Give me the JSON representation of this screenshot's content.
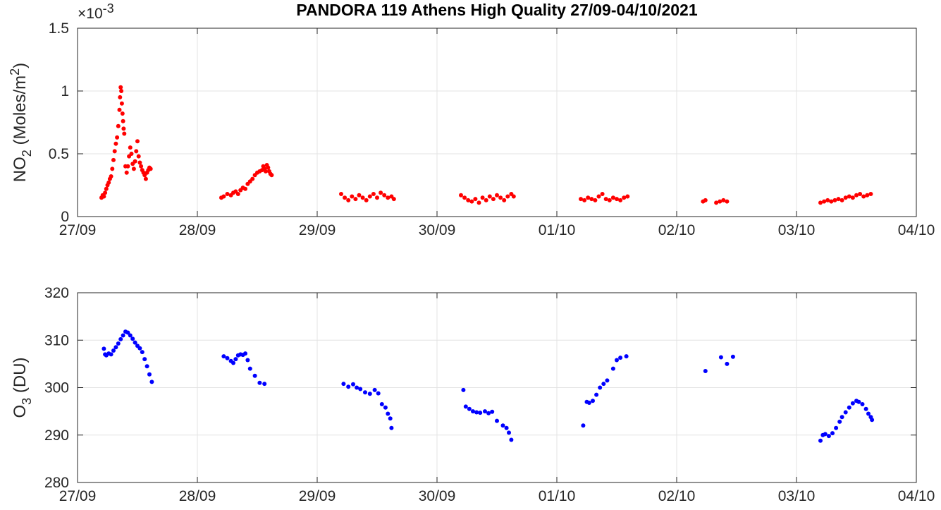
{
  "title": "PANDORA 119 Athens High Quality 27/09-04/10/2021",
  "colors": {
    "no2": "#ff0000",
    "o3": "#0000ff",
    "grid": "#e3e3e3",
    "axis": "#262626"
  },
  "chart_data": [
    {
      "type": "scatter",
      "name": "no2",
      "ylabel": "NO2 (Moles/m2)",
      "ylabel_main": "NO",
      "ylabel_sub": "2",
      "ylabel_rest": " (Moles/m",
      "ylabel_sup": "2",
      "ylabel_end": ")",
      "y_multiplier": "×10",
      "y_multiplier_exp": "-3",
      "xlim": [
        "2021-09-27",
        "2021-10-04"
      ],
      "ylim": [
        0,
        1.5
      ],
      "xticks": [
        "27/09",
        "28/09",
        "29/09",
        "30/09",
        "01/10",
        "02/10",
        "03/10",
        "04/10"
      ],
      "yticks": [
        "0",
        "0.5",
        "1",
        "1.5"
      ],
      "ytick_values": [
        0,
        0.5,
        1,
        1.5
      ],
      "grid": true,
      "units_note": "y values in units of 1e-3 mol/m2; x as fractional day of 27/09",
      "x_days_from": "2021-09-27",
      "points": [
        [
          0.2,
          0.15
        ],
        [
          0.21,
          0.17
        ],
        [
          0.22,
          0.16
        ],
        [
          0.23,
          0.19
        ],
        [
          0.24,
          0.22
        ],
        [
          0.25,
          0.25
        ],
        [
          0.26,
          0.27
        ],
        [
          0.27,
          0.3
        ],
        [
          0.28,
          0.32
        ],
        [
          0.29,
          0.38
        ],
        [
          0.3,
          0.45
        ],
        [
          0.31,
          0.52
        ],
        [
          0.32,
          0.58
        ],
        [
          0.33,
          0.63
        ],
        [
          0.34,
          0.72
        ],
        [
          0.35,
          0.85
        ],
        [
          0.355,
          0.95
        ],
        [
          0.36,
          1.03
        ],
        [
          0.365,
          1.0
        ],
        [
          0.37,
          0.9
        ],
        [
          0.375,
          0.82
        ],
        [
          0.38,
          0.76
        ],
        [
          0.385,
          0.7
        ],
        [
          0.39,
          0.66
        ],
        [
          0.4,
          0.4
        ],
        [
          0.41,
          0.35
        ],
        [
          0.42,
          0.4
        ],
        [
          0.43,
          0.48
        ],
        [
          0.44,
          0.55
        ],
        [
          0.45,
          0.5
        ],
        [
          0.46,
          0.42
        ],
        [
          0.47,
          0.38
        ],
        [
          0.48,
          0.44
        ],
        [
          0.49,
          0.52
        ],
        [
          0.5,
          0.6
        ],
        [
          0.51,
          0.48
        ],
        [
          0.52,
          0.43
        ],
        [
          0.53,
          0.4
        ],
        [
          0.54,
          0.37
        ],
        [
          0.55,
          0.35
        ],
        [
          0.56,
          0.33
        ],
        [
          0.57,
          0.3
        ],
        [
          0.58,
          0.35
        ],
        [
          0.59,
          0.37
        ],
        [
          0.6,
          0.39
        ],
        [
          0.61,
          0.38
        ],
        [
          1.2,
          0.15
        ],
        [
          1.22,
          0.16
        ],
        [
          1.25,
          0.18
        ],
        [
          1.28,
          0.17
        ],
        [
          1.3,
          0.19
        ],
        [
          1.32,
          0.2
        ],
        [
          1.34,
          0.18
        ],
        [
          1.36,
          0.21
        ],
        [
          1.38,
          0.23
        ],
        [
          1.4,
          0.22
        ],
        [
          1.42,
          0.26
        ],
        [
          1.44,
          0.28
        ],
        [
          1.46,
          0.3
        ],
        [
          1.48,
          0.33
        ],
        [
          1.5,
          0.35
        ],
        [
          1.52,
          0.36
        ],
        [
          1.54,
          0.37
        ],
        [
          1.55,
          0.4
        ],
        [
          1.56,
          0.38
        ],
        [
          1.57,
          0.36
        ],
        [
          1.58,
          0.41
        ],
        [
          1.59,
          0.39
        ],
        [
          1.6,
          0.36
        ],
        [
          1.61,
          0.34
        ],
        [
          1.62,
          0.33
        ],
        [
          2.2,
          0.18
        ],
        [
          2.23,
          0.15
        ],
        [
          2.26,
          0.13
        ],
        [
          2.29,
          0.16
        ],
        [
          2.32,
          0.14
        ],
        [
          2.35,
          0.17
        ],
        [
          2.38,
          0.15
        ],
        [
          2.41,
          0.13
        ],
        [
          2.44,
          0.16
        ],
        [
          2.47,
          0.18
        ],
        [
          2.5,
          0.15
        ],
        [
          2.53,
          0.19
        ],
        [
          2.56,
          0.17
        ],
        [
          2.59,
          0.15
        ],
        [
          2.62,
          0.16
        ],
        [
          2.64,
          0.14
        ],
        [
          3.2,
          0.17
        ],
        [
          3.23,
          0.15
        ],
        [
          3.26,
          0.13
        ],
        [
          3.29,
          0.12
        ],
        [
          3.32,
          0.14
        ],
        [
          3.35,
          0.11
        ],
        [
          3.38,
          0.15
        ],
        [
          3.41,
          0.13
        ],
        [
          3.44,
          0.16
        ],
        [
          3.47,
          0.14
        ],
        [
          3.5,
          0.17
        ],
        [
          3.53,
          0.15
        ],
        [
          3.56,
          0.13
        ],
        [
          3.59,
          0.16
        ],
        [
          3.62,
          0.18
        ],
        [
          3.64,
          0.16
        ],
        [
          4.2,
          0.14
        ],
        [
          4.23,
          0.13
        ],
        [
          4.26,
          0.15
        ],
        [
          4.29,
          0.14
        ],
        [
          4.32,
          0.13
        ],
        [
          4.35,
          0.16
        ],
        [
          4.38,
          0.18
        ],
        [
          4.41,
          0.14
        ],
        [
          4.44,
          0.13
        ],
        [
          4.47,
          0.15
        ],
        [
          4.5,
          0.14
        ],
        [
          4.53,
          0.13
        ],
        [
          4.56,
          0.15
        ],
        [
          4.59,
          0.16
        ],
        [
          5.22,
          0.12
        ],
        [
          5.24,
          0.13
        ],
        [
          5.33,
          0.11
        ],
        [
          5.36,
          0.12
        ],
        [
          5.39,
          0.13
        ],
        [
          5.42,
          0.12
        ],
        [
          6.2,
          0.11
        ],
        [
          6.23,
          0.12
        ],
        [
          6.26,
          0.13
        ],
        [
          6.29,
          0.12
        ],
        [
          6.32,
          0.13
        ],
        [
          6.35,
          0.14
        ],
        [
          6.38,
          0.13
        ],
        [
          6.41,
          0.15
        ],
        [
          6.44,
          0.16
        ],
        [
          6.47,
          0.15
        ],
        [
          6.5,
          0.17
        ],
        [
          6.53,
          0.18
        ],
        [
          6.56,
          0.16
        ],
        [
          6.59,
          0.17
        ],
        [
          6.62,
          0.18
        ]
      ]
    },
    {
      "type": "scatter",
      "name": "o3",
      "ylabel": "O3 (DU)",
      "ylabel_main": "O",
      "ylabel_sub": "3",
      "ylabel_rest": " (DU)",
      "xlim": [
        "2021-09-27",
        "2021-10-04"
      ],
      "ylim": [
        280,
        320
      ],
      "xticks": [
        "27/09",
        "28/09",
        "29/09",
        "30/09",
        "01/10",
        "02/10",
        "03/10",
        "04/10"
      ],
      "yticks": [
        "280",
        "290",
        "300",
        "310",
        "320"
      ],
      "ytick_values": [
        280,
        290,
        300,
        310,
        320
      ],
      "grid": true,
      "x_days_from": "2021-09-27",
      "points": [
        [
          0.22,
          308.2
        ],
        [
          0.23,
          307.0
        ],
        [
          0.24,
          306.8
        ],
        [
          0.26,
          307.2
        ],
        [
          0.28,
          307.0
        ],
        [
          0.3,
          307.8
        ],
        [
          0.32,
          308.5
        ],
        [
          0.34,
          309.3
        ],
        [
          0.36,
          310.2
        ],
        [
          0.38,
          311.0
        ],
        [
          0.4,
          311.8
        ],
        [
          0.42,
          311.6
        ],
        [
          0.44,
          311.0
        ],
        [
          0.46,
          310.3
        ],
        [
          0.48,
          309.5
        ],
        [
          0.5,
          308.8
        ],
        [
          0.52,
          308.3
        ],
        [
          0.54,
          307.5
        ],
        [
          0.56,
          306.0
        ],
        [
          0.58,
          304.5
        ],
        [
          0.6,
          302.8
        ],
        [
          0.62,
          301.2
        ],
        [
          1.22,
          306.6
        ],
        [
          1.25,
          306.2
        ],
        [
          1.28,
          305.6
        ],
        [
          1.3,
          305.2
        ],
        [
          1.32,
          306.0
        ],
        [
          1.34,
          306.8
        ],
        [
          1.36,
          307.0
        ],
        [
          1.38,
          306.9
        ],
        [
          1.4,
          307.2
        ],
        [
          1.42,
          305.8
        ],
        [
          1.44,
          304.0
        ],
        [
          1.48,
          302.5
        ],
        [
          1.52,
          301.0
        ],
        [
          1.56,
          300.8
        ],
        [
          2.22,
          300.8
        ],
        [
          2.26,
          300.2
        ],
        [
          2.3,
          300.7
        ],
        [
          2.33,
          300.0
        ],
        [
          2.36,
          299.7
        ],
        [
          2.4,
          299.0
        ],
        [
          2.44,
          298.7
        ],
        [
          2.48,
          299.5
        ],
        [
          2.51,
          298.8
        ],
        [
          2.54,
          296.5
        ],
        [
          2.57,
          295.8
        ],
        [
          2.59,
          294.5
        ],
        [
          2.61,
          293.5
        ],
        [
          2.62,
          291.5
        ],
        [
          3.22,
          299.5
        ],
        [
          3.24,
          296.0
        ],
        [
          3.27,
          295.5
        ],
        [
          3.3,
          295.0
        ],
        [
          3.33,
          294.8
        ],
        [
          3.36,
          294.7
        ],
        [
          3.4,
          295.0
        ],
        [
          3.43,
          294.6
        ],
        [
          3.46,
          294.9
        ],
        [
          3.5,
          293.0
        ],
        [
          3.55,
          292.0
        ],
        [
          3.58,
          291.5
        ],
        [
          3.6,
          290.5
        ],
        [
          3.62,
          289.0
        ],
        [
          4.22,
          292.0
        ],
        [
          4.25,
          297.0
        ],
        [
          4.27,
          296.8
        ],
        [
          4.3,
          297.2
        ],
        [
          4.33,
          298.5
        ],
        [
          4.36,
          300.0
        ],
        [
          4.39,
          300.8
        ],
        [
          4.42,
          301.5
        ],
        [
          4.47,
          304.0
        ],
        [
          4.5,
          305.8
        ],
        [
          4.53,
          306.3
        ],
        [
          4.58,
          306.6
        ],
        [
          5.24,
          303.5
        ],
        [
          5.37,
          306.4
        ],
        [
          5.42,
          305.0
        ],
        [
          5.47,
          306.5
        ],
        [
          6.2,
          288.8
        ],
        [
          6.22,
          290.0
        ],
        [
          6.24,
          290.2
        ],
        [
          6.27,
          289.8
        ],
        [
          6.3,
          290.4
        ],
        [
          6.33,
          291.5
        ],
        [
          6.36,
          292.8
        ],
        [
          6.38,
          293.8
        ],
        [
          6.41,
          294.8
        ],
        [
          6.44,
          295.8
        ],
        [
          6.47,
          296.7
        ],
        [
          6.5,
          297.2
        ],
        [
          6.52,
          297.0
        ],
        [
          6.55,
          296.5
        ],
        [
          6.58,
          295.5
        ],
        [
          6.6,
          294.5
        ],
        [
          6.62,
          293.8
        ],
        [
          6.63,
          293.2
        ]
      ]
    }
  ]
}
